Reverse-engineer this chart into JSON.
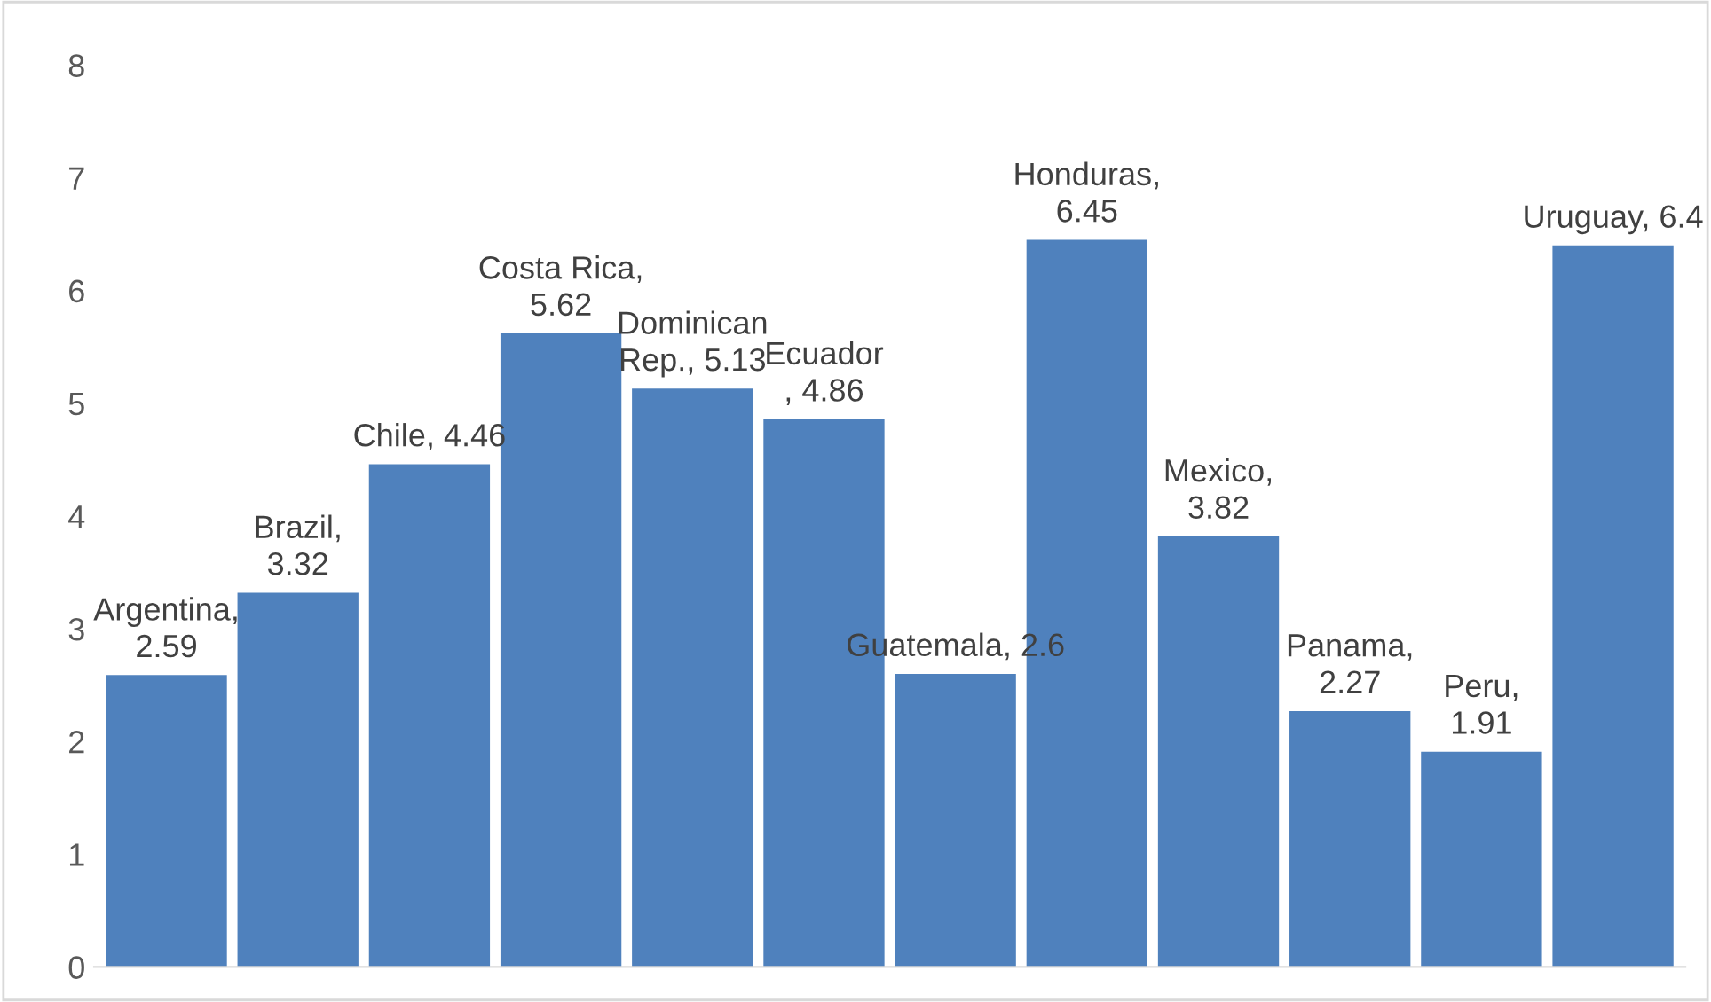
{
  "chart_data": {
    "type": "bar",
    "categories": [
      null,
      null,
      null,
      null,
      null,
      null,
      null,
      null,
      null,
      null,
      null,
      null
    ],
    "values": [
      2.59,
      3.32,
      4.46,
      5.62,
      5.13,
      4.86,
      2.6,
      6.45,
      3.82,
      2.27,
      1.91,
      6.4
    ],
    "value_labels": [
      "Argentina,\n2.59",
      "Brazil,\n3.32",
      "Chile, 4.46",
      "Costa Rica,\n5.62",
      "Dominican\nRep., 5.13",
      "Ecuador\n, 4.86",
      "Guatemala, 2.6",
      "Honduras,\n6.45",
      "Mexico,\n3.82",
      "Panama,\n2.27",
      "Peru,\n1.91",
      "Uruguay, 6.4"
    ],
    "color": "#4f81bd",
    "ylim": [
      0,
      8
    ],
    "yticks": [
      0,
      1,
      2,
      3,
      4,
      5,
      6,
      7,
      8
    ],
    "grid": false,
    "legend": false
  }
}
